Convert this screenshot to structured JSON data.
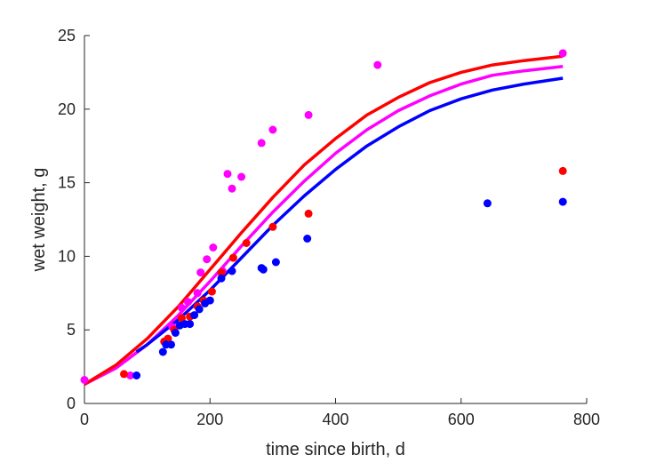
{
  "chart_data": {
    "type": "scatter",
    "title": "",
    "xlabel": "time since birth, d",
    "ylabel": "wet weight, g",
    "xlim": [
      0,
      800
    ],
    "ylim": [
      0,
      25
    ],
    "x_ticks": [
      0,
      200,
      400,
      600,
      800
    ],
    "y_ticks": [
      0,
      5,
      10,
      15,
      20,
      25
    ],
    "x_tick_labels": [
      "0",
      "200",
      "400",
      "600",
      "800"
    ],
    "y_tick_labels": [
      "0",
      "5",
      "10",
      "15",
      "20",
      "25"
    ],
    "grid": false,
    "legend": "none",
    "axis_color": "#262626",
    "series": [
      {
        "color": "#ff00ff",
        "points": [
          [
            0,
            1.6
          ],
          [
            73,
            1.9
          ],
          [
            140,
            5.2
          ],
          [
            155,
            6.5
          ],
          [
            165,
            6.9
          ],
          [
            180,
            7.5
          ],
          [
            185,
            8.9
          ],
          [
            195,
            9.8
          ],
          [
            205,
            10.6
          ],
          [
            220,
            9.0
          ],
          [
            228,
            15.6
          ],
          [
            235,
            14.6
          ],
          [
            250,
            15.4
          ],
          [
            282,
            17.7
          ],
          [
            300,
            18.6
          ],
          [
            357,
            19.6
          ],
          [
            467,
            23.0
          ],
          [
            762,
            23.8
          ]
        ],
        "curve": [
          [
            0,
            1.3
          ],
          [
            50,
            2.4
          ],
          [
            100,
            4.0
          ],
          [
            150,
            6.0
          ],
          [
            200,
            8.3
          ],
          [
            250,
            10.7
          ],
          [
            300,
            13.0
          ],
          [
            350,
            15.1
          ],
          [
            400,
            17.0
          ],
          [
            450,
            18.6
          ],
          [
            500,
            19.9
          ],
          [
            550,
            20.9
          ],
          [
            600,
            21.7
          ],
          [
            650,
            22.3
          ],
          [
            700,
            22.6
          ],
          [
            762,
            22.9
          ]
        ]
      },
      {
        "color": "#ff0000",
        "points": [
          [
            63,
            2.0
          ],
          [
            127,
            4.2
          ],
          [
            133,
            4.4
          ],
          [
            143,
            5.0
          ],
          [
            155,
            5.8
          ],
          [
            168,
            5.9
          ],
          [
            180,
            6.6
          ],
          [
            190,
            7.0
          ],
          [
            203,
            7.6
          ],
          [
            218,
            8.9
          ],
          [
            237,
            9.9
          ],
          [
            258,
            10.9
          ],
          [
            300,
            12.0
          ],
          [
            357,
            12.9
          ],
          [
            762,
            15.8
          ]
        ],
        "curve": [
          [
            0,
            1.3
          ],
          [
            50,
            2.6
          ],
          [
            100,
            4.4
          ],
          [
            150,
            6.6
          ],
          [
            200,
            9.1
          ],
          [
            250,
            11.6
          ],
          [
            300,
            14.0
          ],
          [
            350,
            16.2
          ],
          [
            400,
            18.0
          ],
          [
            450,
            19.6
          ],
          [
            500,
            20.8
          ],
          [
            550,
            21.8
          ],
          [
            600,
            22.5
          ],
          [
            650,
            23.0
          ],
          [
            700,
            23.3
          ],
          [
            762,
            23.6
          ]
        ]
      },
      {
        "color": "#0000ff",
        "points": [
          [
            83,
            1.9
          ],
          [
            125,
            3.5
          ],
          [
            130,
            4.0
          ],
          [
            138,
            4.0
          ],
          [
            145,
            4.8
          ],
          [
            152,
            5.3
          ],
          [
            160,
            5.4
          ],
          [
            168,
            5.4
          ],
          [
            175,
            6.0
          ],
          [
            183,
            6.4
          ],
          [
            192,
            6.8
          ],
          [
            200,
            7.0
          ],
          [
            218,
            8.5
          ],
          [
            235,
            9.0
          ],
          [
            282,
            9.2
          ],
          [
            285,
            9.1
          ],
          [
            305,
            9.6
          ],
          [
            355,
            11.2
          ],
          [
            642,
            13.6
          ],
          [
            762,
            13.7
          ]
        ],
        "curve": [
          [
            83,
            3.5
          ],
          [
            100,
            4.0
          ],
          [
            150,
            5.7
          ],
          [
            200,
            7.7
          ],
          [
            250,
            9.9
          ],
          [
            300,
            12.1
          ],
          [
            350,
            14.1
          ],
          [
            400,
            15.9
          ],
          [
            450,
            17.5
          ],
          [
            500,
            18.8
          ],
          [
            550,
            19.9
          ],
          [
            600,
            20.7
          ],
          [
            650,
            21.3
          ],
          [
            700,
            21.7
          ],
          [
            762,
            22.1
          ]
        ]
      }
    ]
  }
}
